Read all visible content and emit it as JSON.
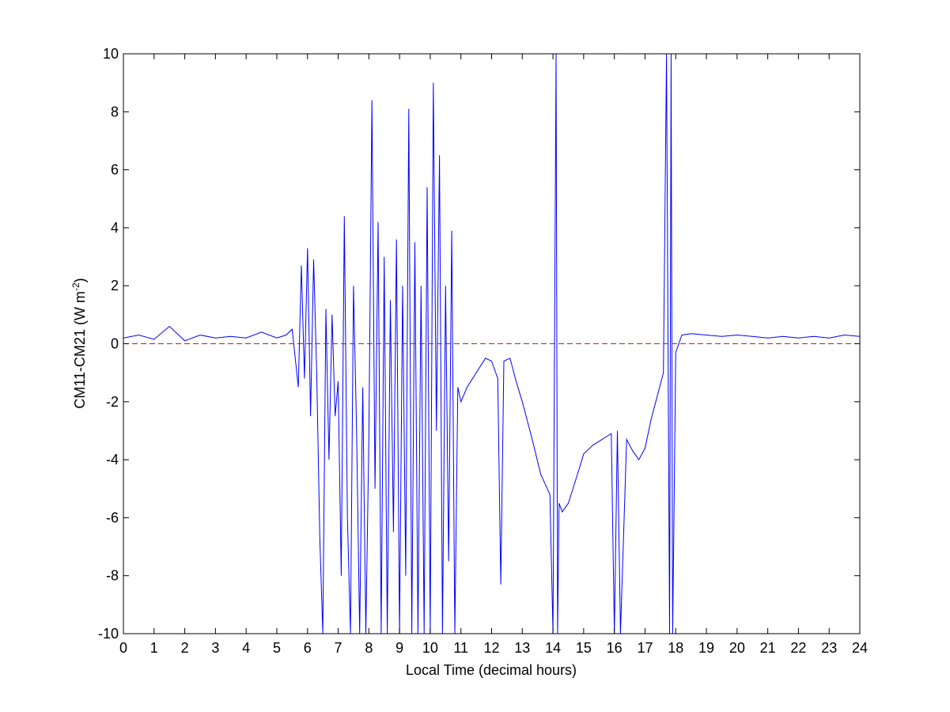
{
  "chart_data": {
    "type": "line",
    "title": "",
    "xlabel": "Local Time (decimal hours)",
    "ylabel": "CM11-CM21 (W m^-2)",
    "ylabel_parts": {
      "base": "CM11-CM21 (W m",
      "exponent": "-2",
      "close": ")"
    },
    "xlim": [
      0,
      24
    ],
    "ylim": [
      -10,
      10
    ],
    "xticks": [
      0,
      1,
      2,
      3,
      4,
      5,
      6,
      7,
      8,
      9,
      10,
      11,
      12,
      13,
      14,
      15,
      16,
      17,
      18,
      19,
      20,
      21,
      22,
      23,
      24
    ],
    "yticks": [
      -10,
      -8,
      -6,
      -4,
      -2,
      0,
      2,
      4,
      6,
      8,
      10
    ],
    "grid": false,
    "legend": "none",
    "reference_line": {
      "y": 0,
      "style": "dashed",
      "color": "#b22222"
    },
    "series": [
      {
        "color": "#0000ff",
        "x": [
          0,
          0.5,
          1.0,
          1.5,
          2.0,
          2.5,
          3.0,
          3.5,
          4.0,
          4.5,
          5.0,
          5.3,
          5.5,
          5.7,
          5.8,
          5.9,
          6.0,
          6.1,
          6.2,
          6.3,
          6.4,
          6.5,
          6.6,
          6.7,
          6.8,
          6.9,
          7.0,
          7.1,
          7.2,
          7.3,
          7.4,
          7.5,
          7.6,
          7.7,
          7.8,
          7.9,
          8.0,
          8.1,
          8.2,
          8.3,
          8.4,
          8.5,
          8.6,
          8.7,
          8.8,
          8.9,
          9.0,
          9.1,
          9.2,
          9.3,
          9.4,
          9.5,
          9.6,
          9.7,
          9.8,
          9.9,
          10.0,
          10.1,
          10.2,
          10.3,
          10.4,
          10.5,
          10.6,
          10.7,
          10.8,
          10.9,
          11.0,
          11.2,
          11.5,
          11.8,
          12.0,
          12.2,
          12.3,
          12.4,
          12.6,
          12.8,
          13.0,
          13.3,
          13.6,
          13.9,
          14.0,
          14.1,
          14.15,
          14.2,
          14.3,
          14.5,
          14.8,
          15.0,
          15.3,
          15.6,
          15.9,
          16.0,
          16.1,
          16.2,
          16.4,
          16.6,
          16.8,
          17.0,
          17.2,
          17.4,
          17.6,
          17.7,
          17.8,
          17.85,
          17.9,
          18.0,
          18.2,
          18.5,
          19.0,
          19.5,
          20.0,
          20.5,
          21.0,
          21.5,
          22.0,
          22.5,
          23.0,
          23.5,
          24.0
        ],
        "y": [
          0.2,
          0.3,
          0.15,
          0.6,
          0.1,
          0.3,
          0.2,
          0.25,
          0.2,
          0.4,
          0.2,
          0.3,
          0.5,
          -1.5,
          2.7,
          -1.2,
          3.3,
          -2.5,
          2.9,
          -1.0,
          -6.7,
          -10,
          1.2,
          -4.0,
          1.0,
          -2.5,
          -1.3,
          -8.0,
          4.4,
          -6.0,
          -10,
          2.0,
          -3.0,
          -10,
          -1.5,
          -10,
          -3.3,
          8.4,
          -5.0,
          4.2,
          -10,
          3.0,
          -10,
          1.5,
          -6.5,
          3.6,
          -10,
          2.0,
          -8.0,
          8.1,
          -10,
          3.5,
          -10,
          2.0,
          -10,
          5.4,
          -10,
          9.0,
          -3.0,
          6.5,
          -10,
          2.0,
          -7.5,
          3.9,
          -10,
          -1.5,
          -2.0,
          -1.5,
          -1.0,
          -0.5,
          -0.6,
          -1.2,
          -8.3,
          -0.6,
          -0.5,
          -1.3,
          -2.0,
          -3.2,
          -4.5,
          -5.2,
          -10,
          10,
          -10,
          -5.5,
          -5.8,
          -5.5,
          -4.5,
          -3.8,
          -3.5,
          -3.3,
          -3.1,
          -10,
          -3.0,
          -10,
          -3.3,
          -3.7,
          -4.0,
          -3.6,
          -2.6,
          -1.8,
          -1.0,
          10,
          -10,
          10,
          -10,
          -0.3,
          0.3,
          0.35,
          0.3,
          0.25,
          0.3,
          0.25,
          0.2,
          0.25,
          0.2,
          0.25,
          0.2,
          0.3,
          0.25
        ]
      }
    ]
  }
}
